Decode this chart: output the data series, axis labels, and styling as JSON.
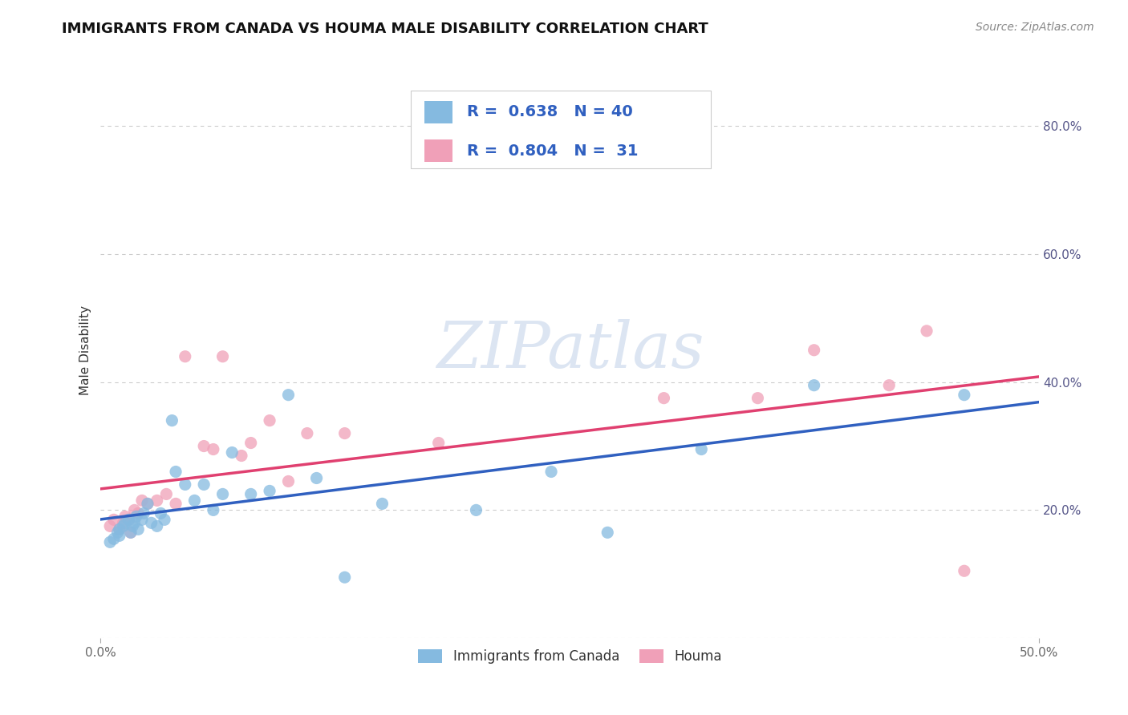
{
  "title": "IMMIGRANTS FROM CANADA VS HOUMA MALE DISABILITY CORRELATION CHART",
  "source": "Source: ZipAtlas.com",
  "ylabel": "Male Disability",
  "xlim": [
    0.0,
    0.5
  ],
  "ylim": [
    0.0,
    0.9
  ],
  "y_ticks": [
    0.0,
    0.2,
    0.4,
    0.6,
    0.8
  ],
  "y_tick_labels": [
    "",
    "20.0%",
    "40.0%",
    "60.0%",
    "80.0%"
  ],
  "x_tick_labels": [
    "0.0%",
    "50.0%"
  ],
  "grid_color": "#cccccc",
  "background_color": "#ffffff",
  "watermark": "ZIPatlas",
  "blue_color": "#85bae0",
  "pink_color": "#f0a0b8",
  "blue_line_color": "#3060c0",
  "pink_line_color": "#e04070",
  "R_blue": 0.638,
  "N_blue": 40,
  "R_pink": 0.804,
  "N_pink": 31,
  "blue_scatter_x": [
    0.005,
    0.007,
    0.009,
    0.01,
    0.01,
    0.012,
    0.013,
    0.015,
    0.016,
    0.017,
    0.018,
    0.019,
    0.02,
    0.022,
    0.023,
    0.025,
    0.027,
    0.03,
    0.032,
    0.034,
    0.038,
    0.04,
    0.045,
    0.05,
    0.055,
    0.06,
    0.065,
    0.07,
    0.08,
    0.09,
    0.1,
    0.115,
    0.13,
    0.15,
    0.2,
    0.24,
    0.27,
    0.32,
    0.38,
    0.46
  ],
  "blue_scatter_y": [
    0.15,
    0.155,
    0.165,
    0.16,
    0.17,
    0.175,
    0.18,
    0.185,
    0.165,
    0.175,
    0.18,
    0.19,
    0.17,
    0.185,
    0.195,
    0.21,
    0.18,
    0.175,
    0.195,
    0.185,
    0.34,
    0.26,
    0.24,
    0.215,
    0.24,
    0.2,
    0.225,
    0.29,
    0.225,
    0.23,
    0.38,
    0.25,
    0.095,
    0.21,
    0.2,
    0.26,
    0.165,
    0.295,
    0.395,
    0.38
  ],
  "pink_scatter_x": [
    0.005,
    0.007,
    0.01,
    0.012,
    0.013,
    0.015,
    0.016,
    0.018,
    0.02,
    0.022,
    0.025,
    0.03,
    0.035,
    0.04,
    0.045,
    0.055,
    0.06,
    0.065,
    0.075,
    0.08,
    0.09,
    0.1,
    0.11,
    0.13,
    0.18,
    0.3,
    0.35,
    0.38,
    0.42,
    0.44,
    0.46
  ],
  "pink_scatter_y": [
    0.175,
    0.185,
    0.17,
    0.18,
    0.19,
    0.185,
    0.165,
    0.2,
    0.195,
    0.215,
    0.21,
    0.215,
    0.225,
    0.21,
    0.44,
    0.3,
    0.295,
    0.44,
    0.285,
    0.305,
    0.34,
    0.245,
    0.32,
    0.32,
    0.305,
    0.375,
    0.375,
    0.45,
    0.395,
    0.48,
    0.105
  ],
  "legend_label_blue": "Immigrants from Canada",
  "legend_label_pink": "Houma",
  "title_fontsize": 13,
  "label_fontsize": 11,
  "tick_fontsize": 11,
  "source_fontsize": 10,
  "dot_size": 120
}
